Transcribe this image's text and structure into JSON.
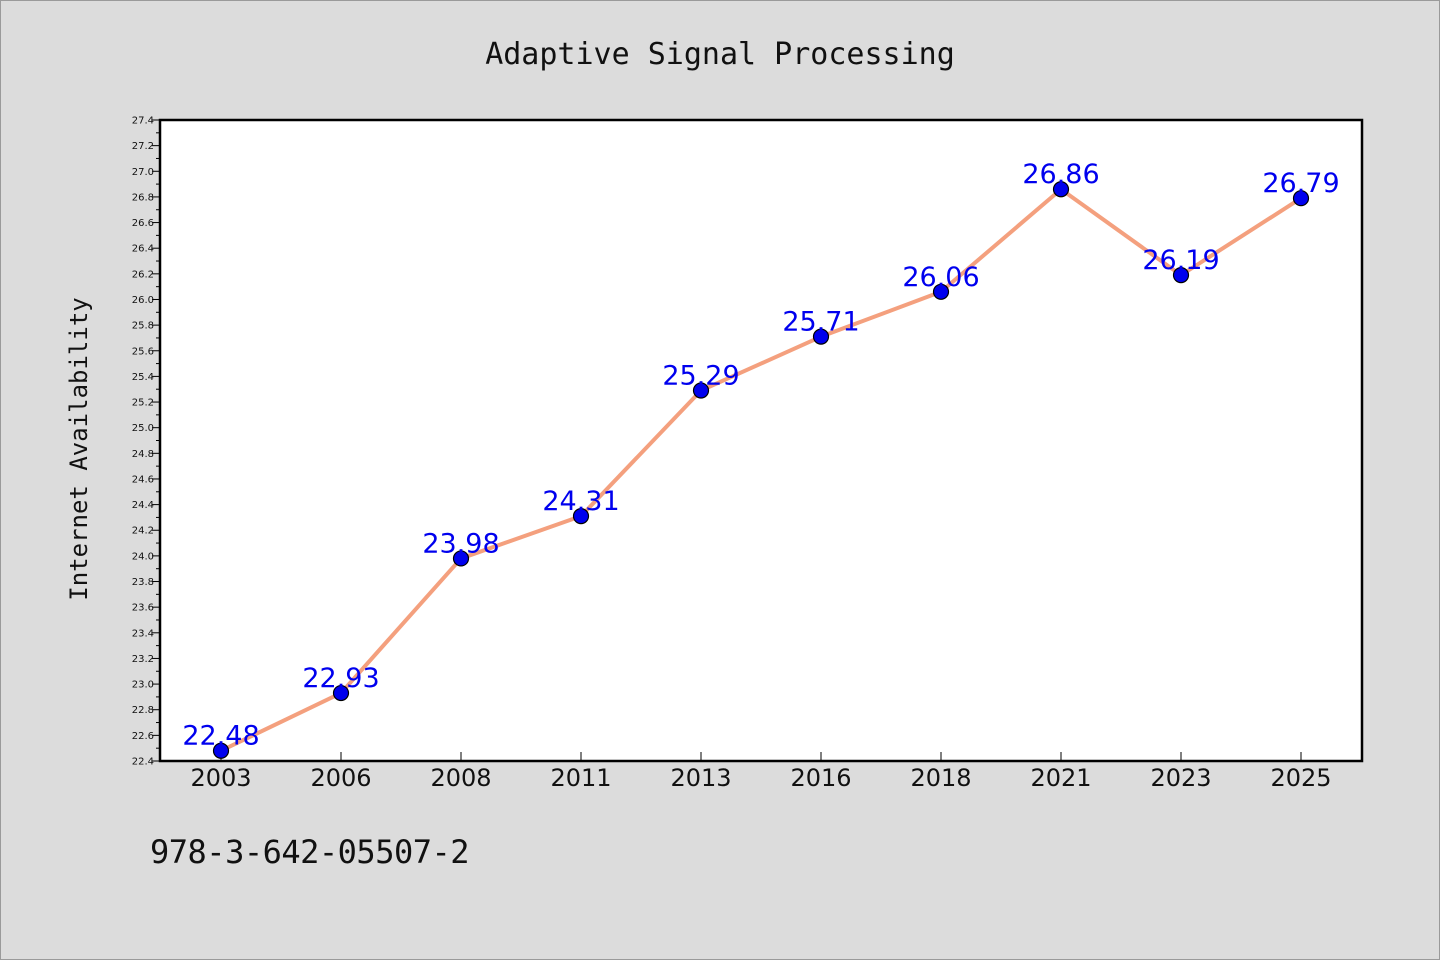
{
  "page": {
    "background": "#dcdcdc",
    "footer_code": "978-3-642-05507-2"
  },
  "chart_data": {
    "type": "line",
    "title": "Adaptive Signal Processing",
    "xlabel": "",
    "ylabel": "Internet Availability",
    "categories": [
      "2003",
      "2006",
      "2008",
      "2011",
      "2013",
      "2016",
      "2018",
      "2021",
      "2023",
      "2025"
    ],
    "series": [
      {
        "values": [
          22.48,
          22.93,
          23.98,
          24.31,
          25.29,
          25.71,
          26.06,
          26.86,
          26.19,
          26.79
        ],
        "data_labels": [
          "22.48",
          "22.93",
          "23.98",
          "24.31",
          "25.29",
          "25.71",
          "26.06",
          "26.86",
          "26.19",
          "26.79"
        ],
        "line_color": "#f4a07e",
        "marker_color": "#0000ee"
      }
    ],
    "ylim": [
      22.4,
      27.4
    ],
    "yticks": [
      "22.4",
      "22.6",
      "22.8",
      "23.0",
      "23.2",
      "23.4",
      "23.6",
      "23.8",
      "24.0",
      "24.2",
      "24.4",
      "24.6",
      "24.8",
      "25.0",
      "25.2",
      "25.4",
      "25.6",
      "25.8",
      "26.0",
      "26.2",
      "26.4",
      "26.6",
      "26.8",
      "27.0",
      "27.2",
      "27.4"
    ],
    "grid": false,
    "legend": "none",
    "data_label_color": "#0000ee"
  }
}
